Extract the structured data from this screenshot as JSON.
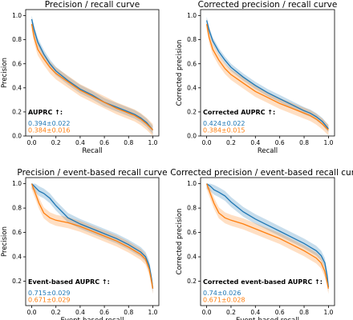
{
  "colors": {
    "blue": "#1f77b4",
    "orange": "#ff7f0e"
  },
  "chart_data": [
    {
      "type": "line",
      "title": "Precision / recall curve",
      "xlabel": "Recall",
      "ylabel": "Precision",
      "xlim": [
        -0.05,
        1.05
      ],
      "ylim": [
        0.0,
        1.05
      ],
      "xticks": [
        "0.0",
        "0.2",
        "0.4",
        "0.6",
        "0.8",
        "1.0"
      ],
      "yticks": [
        "0.0",
        "0.2",
        "0.4",
        "0.6",
        "0.8",
        "1.0"
      ],
      "annotation": {
        "title": "AUPRC ↑:",
        "values": [
          "0.394±0.022",
          "0.384±0.016"
        ]
      },
      "series": [
        {
          "color": "blue",
          "x": [
            0.0,
            0.02,
            0.05,
            0.1,
            0.15,
            0.2,
            0.3,
            0.4,
            0.5,
            0.6,
            0.7,
            0.8,
            0.85,
            0.9,
            0.95,
            1.0
          ],
          "y": [
            0.97,
            0.88,
            0.78,
            0.68,
            0.6,
            0.54,
            0.46,
            0.39,
            0.34,
            0.28,
            0.24,
            0.2,
            0.18,
            0.15,
            0.11,
            0.05
          ],
          "band": 0.035
        },
        {
          "color": "orange",
          "x": [
            0.0,
            0.02,
            0.05,
            0.1,
            0.15,
            0.2,
            0.3,
            0.4,
            0.5,
            0.6,
            0.7,
            0.8,
            0.85,
            0.9,
            0.95,
            1.0
          ],
          "y": [
            0.93,
            0.82,
            0.72,
            0.64,
            0.57,
            0.52,
            0.45,
            0.38,
            0.33,
            0.28,
            0.23,
            0.19,
            0.17,
            0.14,
            0.1,
            0.05
          ],
          "band": 0.05
        }
      ]
    },
    {
      "type": "line",
      "title": "Corrected precision / recall curve",
      "xlabel": "Recall",
      "ylabel": "Corrected precision",
      "xlim": [
        -0.05,
        1.05
      ],
      "ylim": [
        0.0,
        1.05
      ],
      "xticks": [
        "0.0",
        "0.2",
        "0.4",
        "0.6",
        "0.8",
        "1.0"
      ],
      "yticks": [
        "0.0",
        "0.2",
        "0.4",
        "0.6",
        "0.8",
        "1.0"
      ],
      "annotation": {
        "title": "Corrected AUPRC ↑:",
        "values": [
          "0.424±0.022",
          "0.384±0.015"
        ]
      },
      "series": [
        {
          "color": "blue",
          "x": [
            0.0,
            0.02,
            0.05,
            0.1,
            0.15,
            0.2,
            0.3,
            0.4,
            0.5,
            0.6,
            0.7,
            0.8,
            0.85,
            0.9,
            0.95,
            1.0
          ],
          "y": [
            0.96,
            0.88,
            0.79,
            0.7,
            0.63,
            0.57,
            0.49,
            0.42,
            0.36,
            0.31,
            0.26,
            0.21,
            0.19,
            0.16,
            0.12,
            0.06
          ],
          "band": 0.03
        },
        {
          "color": "orange",
          "x": [
            0.0,
            0.02,
            0.05,
            0.1,
            0.15,
            0.2,
            0.3,
            0.4,
            0.5,
            0.6,
            0.7,
            0.8,
            0.85,
            0.9,
            0.95,
            1.0
          ],
          "y": [
            0.93,
            0.82,
            0.72,
            0.63,
            0.56,
            0.51,
            0.44,
            0.37,
            0.32,
            0.27,
            0.23,
            0.19,
            0.17,
            0.14,
            0.1,
            0.05
          ],
          "band": 0.045
        }
      ]
    },
    {
      "type": "line",
      "title": "Precision / event-based recall curve",
      "xlabel": "Event-based recall",
      "ylabel": "Precision",
      "xlim": [
        -0.05,
        1.05
      ],
      "ylim": [
        0.0,
        1.05
      ],
      "xticks": [
        "0.0",
        "0.2",
        "0.4",
        "0.6",
        "0.8",
        "1.0"
      ],
      "yticks": [
        "0.2",
        "0.4",
        "0.6",
        "0.8",
        "1.0"
      ],
      "annotation": {
        "title": "Event-based AUPRC ↑:",
        "values": [
          "0.715±0.029",
          "0.671±0.029"
        ]
      },
      "series": [
        {
          "color": "blue",
          "x": [
            0.0,
            0.03,
            0.06,
            0.1,
            0.15,
            0.2,
            0.3,
            0.4,
            0.5,
            0.6,
            0.7,
            0.8,
            0.85,
            0.9,
            0.94,
            0.97,
            0.99,
            1.0
          ],
          "y": [
            1.0,
            0.97,
            0.94,
            0.92,
            0.88,
            0.82,
            0.72,
            0.67,
            0.63,
            0.59,
            0.55,
            0.5,
            0.47,
            0.44,
            0.4,
            0.33,
            0.22,
            0.14
          ],
          "band": 0.04
        },
        {
          "color": "orange",
          "x": [
            0.0,
            0.03,
            0.06,
            0.1,
            0.15,
            0.2,
            0.3,
            0.4,
            0.5,
            0.6,
            0.7,
            0.8,
            0.85,
            0.9,
            0.94,
            0.97,
            0.99,
            1.0
          ],
          "y": [
            1.0,
            0.92,
            0.84,
            0.76,
            0.72,
            0.7,
            0.68,
            0.65,
            0.61,
            0.57,
            0.53,
            0.48,
            0.45,
            0.42,
            0.38,
            0.3,
            0.2,
            0.14
          ],
          "band": 0.045
        }
      ]
    },
    {
      "type": "line",
      "title": "Corrected precision / event-based recall curve",
      "xlabel": "Event-based recall",
      "ylabel": "Corrected precision",
      "xlim": [
        -0.05,
        1.05
      ],
      "ylim": [
        0.0,
        1.05
      ],
      "xticks": [
        "0.0",
        "0.2",
        "0.4",
        "0.6",
        "0.8",
        "1.0"
      ],
      "yticks": [
        "0.2",
        "0.4",
        "0.6",
        "0.8",
        "1.0"
      ],
      "annotation": {
        "title": "Corrected event-based AUPRC ↑:",
        "values": [
          "0.74±0.026",
          "0.671±0.028"
        ]
      },
      "series": [
        {
          "color": "blue",
          "x": [
            0.0,
            0.03,
            0.06,
            0.1,
            0.15,
            0.2,
            0.3,
            0.4,
            0.5,
            0.6,
            0.7,
            0.8,
            0.85,
            0.9,
            0.94,
            0.97,
            0.99,
            1.0
          ],
          "y": [
            1.0,
            0.98,
            0.95,
            0.93,
            0.9,
            0.85,
            0.77,
            0.71,
            0.66,
            0.61,
            0.56,
            0.51,
            0.48,
            0.45,
            0.41,
            0.35,
            0.24,
            0.15
          ],
          "band": 0.04
        },
        {
          "color": "orange",
          "x": [
            0.0,
            0.03,
            0.06,
            0.1,
            0.15,
            0.2,
            0.3,
            0.4,
            0.5,
            0.6,
            0.7,
            0.8,
            0.85,
            0.9,
            0.94,
            0.97,
            0.99,
            1.0
          ],
          "y": [
            1.0,
            0.92,
            0.84,
            0.76,
            0.72,
            0.7,
            0.67,
            0.63,
            0.59,
            0.55,
            0.5,
            0.45,
            0.42,
            0.39,
            0.35,
            0.28,
            0.19,
            0.14
          ],
          "band": 0.045
        }
      ]
    }
  ]
}
